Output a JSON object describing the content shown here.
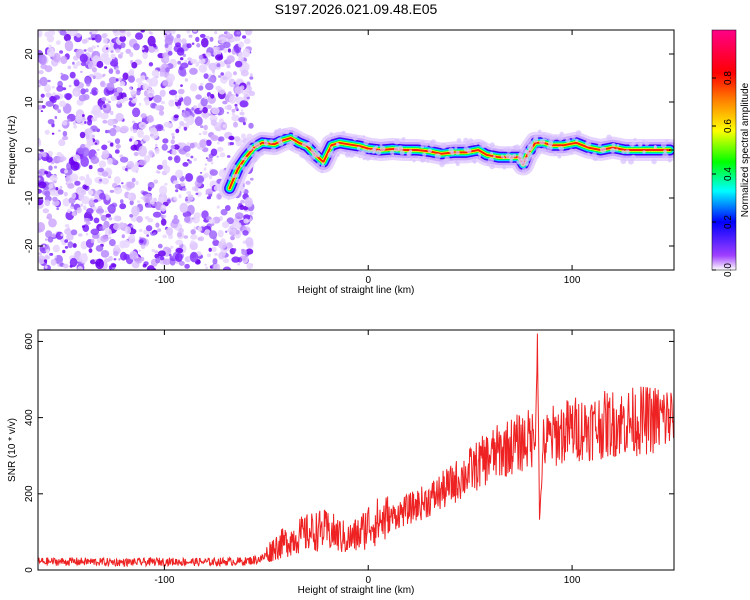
{
  "title": "S197.2026.021.09.48.E05",
  "chart_data": [
    {
      "type": "heatmap",
      "title": "S197.2026.021.09.48.E05",
      "xlabel": "Height of straight line (km)",
      "ylabel": "Frequency (Hz)",
      "xlim": [
        -162,
        150
      ],
      "ylim": [
        -25,
        25
      ],
      "xticks": [
        -100,
        0,
        100
      ],
      "yticks": [
        -20,
        -10,
        0,
        10,
        20
      ],
      "xtick_labels": [
        "-100",
        "0",
        "100"
      ],
      "ytick_labels": [
        "-20",
        "-10",
        "0",
        "10",
        "20"
      ],
      "noise_region_x": [
        -162,
        -57
      ],
      "noise_region_y": [
        -25,
        25
      ],
      "tone_trace": {
        "x": [
          -68,
          -64,
          -60,
          -56,
          -52,
          -46,
          -42,
          -38,
          -34,
          -30,
          -26,
          -22,
          -18,
          -14,
          -10,
          -4,
          0,
          6,
          12,
          18,
          24,
          30,
          36,
          42,
          48,
          54,
          58,
          64,
          70,
          74,
          76,
          78,
          82,
          86,
          90,
          96,
          102,
          108,
          114,
          120,
          126,
          132,
          138,
          144,
          148
        ],
        "y": [
          -8,
          -4,
          -1.5,
          0.5,
          1.5,
          1.2,
          2,
          2.5,
          1.5,
          0.8,
          -1,
          -2.5,
          1,
          1.5,
          1.2,
          0.8,
          0.3,
          0,
          0.2,
          0,
          0,
          -0.3,
          -0.8,
          -0.5,
          -0.5,
          0,
          -1,
          -1.5,
          -1.5,
          -1.5,
          -3,
          -1,
          1.5,
          1.5,
          1,
          1,
          1.5,
          0.5,
          0,
          0.5,
          0,
          0,
          0,
          0,
          0
        ]
      },
      "colorbar": {
        "label": "Normalized spectral amplitude",
        "range": [
          0,
          1
        ],
        "ticks": [
          0,
          0.2,
          0.4,
          0.6,
          0.8
        ],
        "tick_labels": [
          "0.0",
          "0.2",
          "0.4",
          "0.6",
          "0.8"
        ],
        "colors": [
          "#ffffff",
          "#8800ff",
          "#0000ff",
          "#00ffff",
          "#00ff00",
          "#ffff00",
          "#ff8800",
          "#ff0000",
          "#ff0088"
        ]
      }
    },
    {
      "type": "line",
      "xlabel": "Height of straight line (km)",
      "ylabel": "SNR (10 * v/v)",
      "xlim": [
        -162,
        150
      ],
      "ylim": [
        0,
        630
      ],
      "xticks": [
        -100,
        0,
        100
      ],
      "yticks": [
        0,
        200,
        400,
        600
      ],
      "xtick_labels": [
        "-100",
        "0",
        "100"
      ],
      "ytick_labels": [
        "0",
        "200",
        "400",
        "600"
      ],
      "series": [
        {
          "name": "SNR",
          "color": "#ee2222",
          "x": [
            -162,
            -140,
            -120,
            -100,
            -80,
            -60,
            -52,
            -46,
            -40,
            -34,
            -28,
            -22,
            -16,
            -10,
            -4,
            0,
            10,
            20,
            30,
            40,
            50,
            60,
            70,
            80,
            82,
            83,
            84,
            86,
            90,
            100,
            110,
            120,
            130,
            140,
            150
          ],
          "y": [
            22,
            22,
            20,
            22,
            21,
            23,
            30,
            60,
            75,
            90,
            100,
            105,
            95,
            80,
            95,
            120,
            135,
            160,
            185,
            220,
            260,
            300,
            325,
            345,
            340,
            630,
            130,
            330,
            350,
            370,
            375,
            385,
            390,
            395,
            400
          ]
        }
      ]
    }
  ]
}
